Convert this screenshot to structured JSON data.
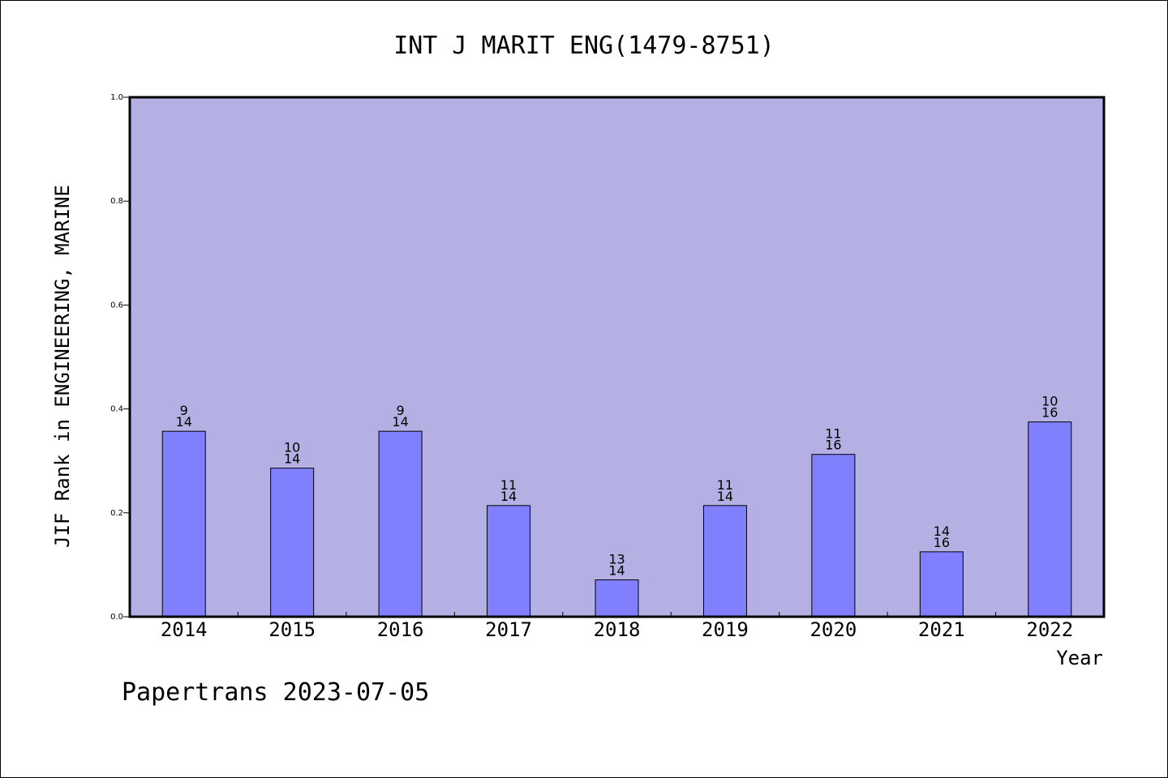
{
  "chart_data": {
    "type": "bar",
    "title": "INT J MARIT ENG(1479-8751)",
    "xlabel": "Year",
    "ylabel": "JIF Rank in ENGINEERING, MARINE",
    "ylim": [
      0,
      1.0
    ],
    "yticks": [
      "0.0",
      "0.2",
      "0.4",
      "0.6",
      "0.8",
      "1.0"
    ],
    "categories": [
      "2014",
      "2015",
      "2016",
      "2017",
      "2018",
      "2019",
      "2020",
      "2021",
      "2022"
    ],
    "values": [
      0.357,
      0.286,
      0.357,
      0.214,
      0.071,
      0.214,
      0.3125,
      0.125,
      0.375
    ],
    "rank": [
      "9",
      "10",
      "9",
      "11",
      "13",
      "11",
      "11",
      "14",
      "10"
    ],
    "total": [
      "14",
      "14",
      "14",
      "14",
      "14",
      "14",
      "16",
      "16",
      "16"
    ],
    "grid": false,
    "colors": {
      "plot_background": "#b5b0e3",
      "bar_fill": "#8080ff",
      "bar_stroke": "#000000"
    }
  },
  "footer": "Papertrans 2023-07-05"
}
